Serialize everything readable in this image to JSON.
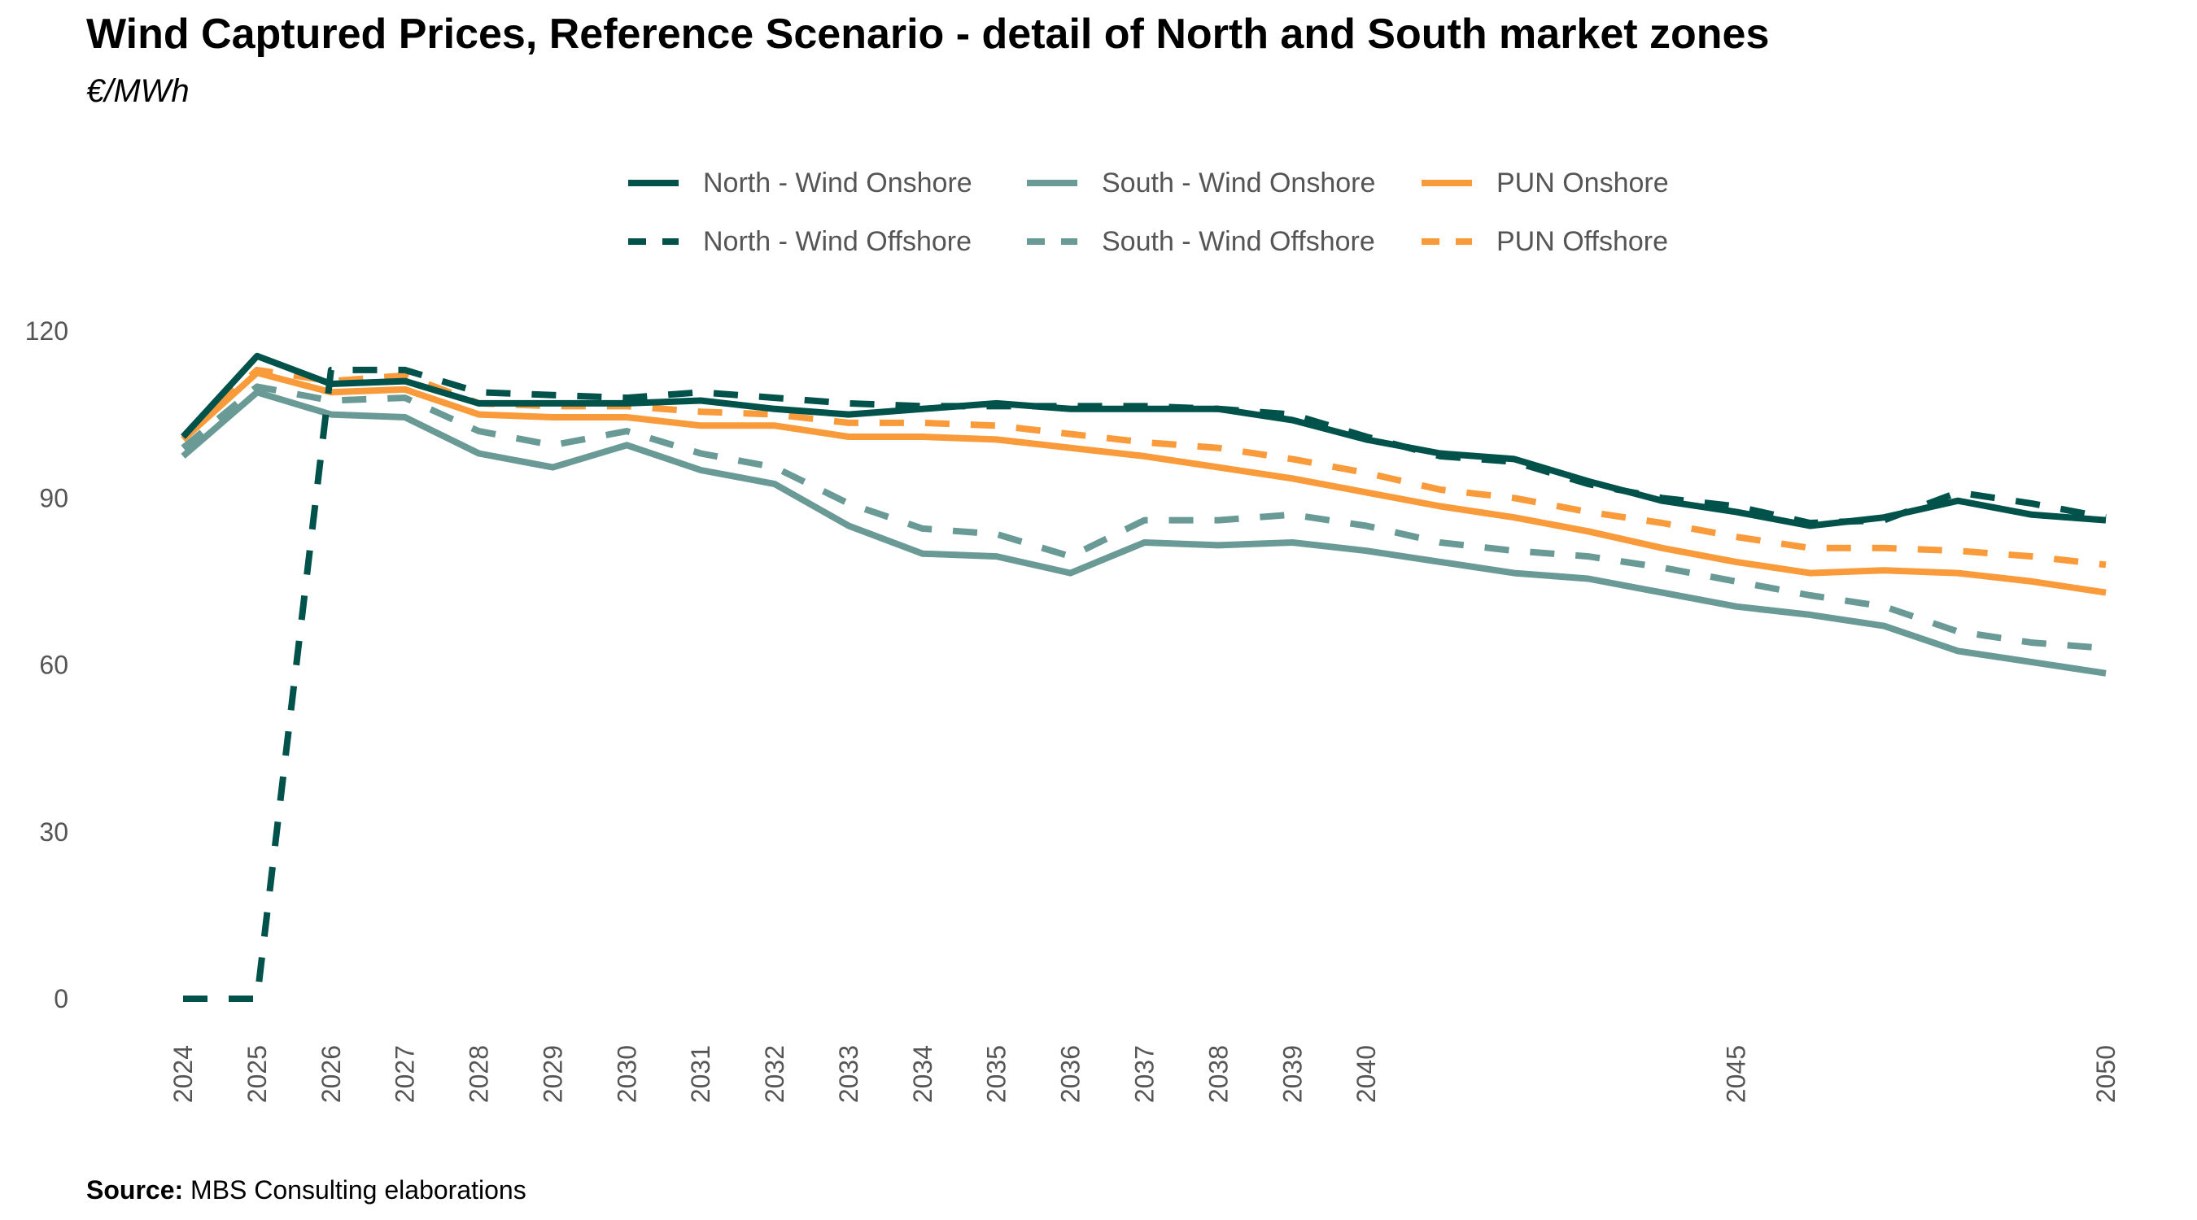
{
  "header": {
    "title": "Wind Captured Prices, Reference Scenario - detail of North and South market zones",
    "subtitle": "€/MWh"
  },
  "footer": {
    "source_label": "Source:",
    "source_text": " MBS Consulting elaborations"
  },
  "chart_data": {
    "type": "line",
    "title": "Wind Captured Prices, Reference Scenario - detail of North and South market zones",
    "ylabel": "€/MWh",
    "xlabel": "",
    "ylim": [
      0,
      125
    ],
    "yticks": [
      0,
      30,
      60,
      90,
      120
    ],
    "xticks": [
      2024,
      2025,
      2026,
      2027,
      2028,
      2029,
      2030,
      2031,
      2032,
      2033,
      2034,
      2035,
      2036,
      2037,
      2038,
      2039,
      2040,
      2045,
      2050
    ],
    "grid": false,
    "legend_position": "top-center",
    "x": [
      2024,
      2025,
      2026,
      2027,
      2028,
      2029,
      2030,
      2031,
      2032,
      2033,
      2034,
      2035,
      2036,
      2037,
      2038,
      2039,
      2040,
      2041,
      2042,
      2043,
      2044,
      2045,
      2046,
      2047,
      2048,
      2049,
      2050
    ],
    "series": [
      {
        "name": "North - Wind Onshore",
        "color": "#00524a",
        "dash": "solid",
        "values": [
          101,
          115.5,
          110.5,
          111,
          107,
          107,
          107,
          107.5,
          106,
          105,
          106,
          107,
          106,
          106,
          106,
          104,
          100.5,
          98,
          97,
          93,
          89.5,
          87.5,
          85,
          86.5,
          89.5,
          87,
          86
        ]
      },
      {
        "name": "South - Wind Onshore",
        "color": "#6a9a96",
        "dash": "solid",
        "values": [
          97.5,
          109,
          105,
          104.5,
          98,
          95.5,
          99.5,
          95,
          92.5,
          85,
          80,
          79.5,
          76.5,
          82,
          81.5,
          82,
          80.5,
          78.5,
          76.5,
          75.5,
          73,
          70.5,
          69,
          67,
          62.5,
          60.5,
          58.5
        ]
      },
      {
        "name": "PUN Onshore",
        "color": "#f99b3a",
        "dash": "solid",
        "values": [
          100.5,
          112.5,
          109,
          109.5,
          105,
          104.5,
          104.5,
          103,
          103,
          101,
          101,
          100.5,
          99,
          97.5,
          95.5,
          93.5,
          91,
          88.5,
          86.5,
          84,
          81,
          78.5,
          76.5,
          77,
          76.5,
          75,
          73
        ]
      },
      {
        "name": "North - Wind Offshore",
        "color": "#00524a",
        "dash": "dashed",
        "values": [
          0,
          0,
          113,
          113,
          109,
          108.5,
          108,
          109,
          108,
          107,
          106.5,
          106.5,
          106.5,
          106.5,
          106,
          105,
          101,
          97.5,
          96.5,
          92.5,
          90,
          88.5,
          85.5,
          86,
          91,
          89,
          86.5
        ]
      },
      {
        "name": "South - Wind Offshore",
        "color": "#6a9a96",
        "dash": "dashed",
        "values": [
          99,
          110,
          107.5,
          108,
          102,
          99.5,
          102,
          98,
          95.5,
          89,
          84.5,
          83.5,
          79.5,
          86,
          86,
          87,
          85,
          82,
          80.5,
          79.5,
          77.5,
          75,
          72.5,
          70.5,
          66,
          64,
          63
        ]
      },
      {
        "name": "PUN Offshore",
        "color": "#f99b3a",
        "dash": "dashed",
        "values": [
          101,
          113,
          111,
          112,
          107,
          106.5,
          106.5,
          105.5,
          105,
          103.5,
          103.5,
          103,
          101.5,
          100,
          99,
          97,
          94.5,
          91.5,
          90,
          87.5,
          85.5,
          83,
          81,
          81,
          80.5,
          79.5,
          78
        ]
      }
    ]
  }
}
